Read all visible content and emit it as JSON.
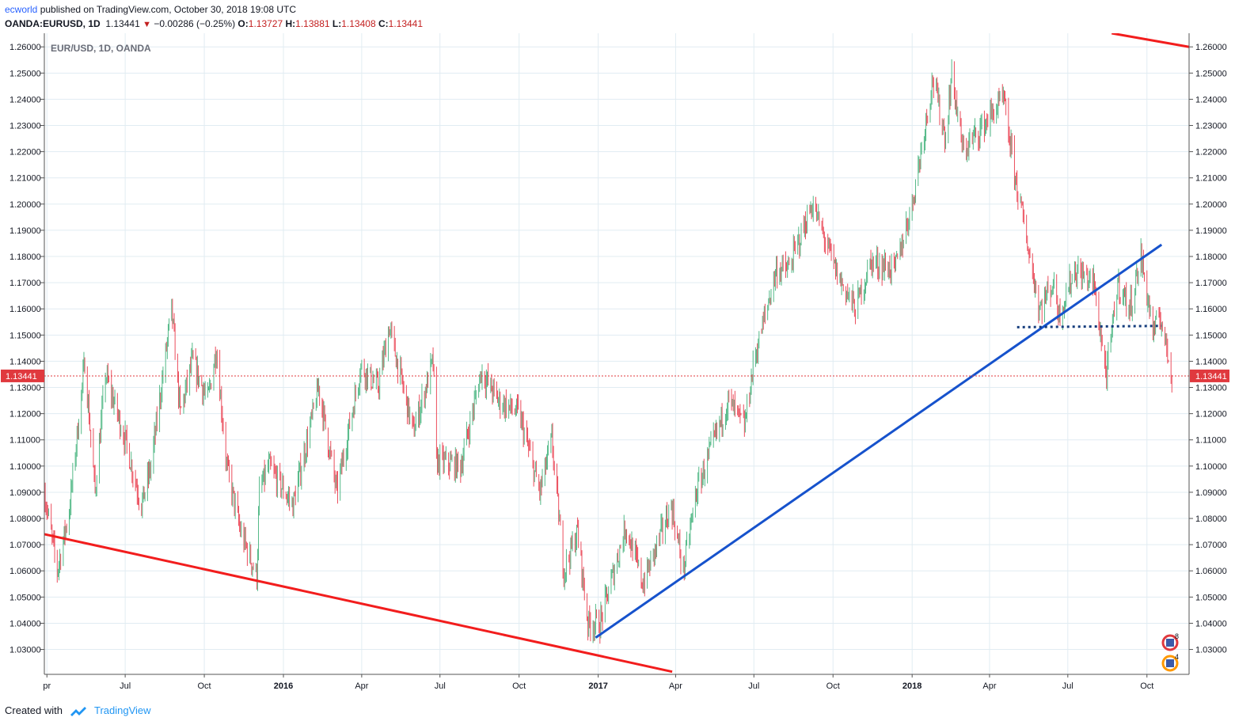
{
  "header": {
    "author": "ecworld",
    "published_text": " published on TradingView.com, October 30, 2018 19:08 UTC",
    "symbol": "OANDA:EURUSD, 1D",
    "last": "1.13441",
    "arrow": "▼",
    "change": "−0.00286 (−0.25%)",
    "o_label": "O:",
    "o_value": "1.13727",
    "h_label": "H:",
    "h_value": "1.13881",
    "l_label": "L:",
    "l_value": "1.13408",
    "c_label": "C:",
    "c_value": "1.13441"
  },
  "footer": {
    "created_with": "Created with",
    "brand": "TradingView"
  },
  "chart_data": {
    "type": "candlestick",
    "watermark": "EUR/USD, 1D, OANDA",
    "y_ticks": [
      "1.26000",
      "1.25000",
      "1.24000",
      "1.23000",
      "1.22000",
      "1.21000",
      "1.20000",
      "1.19000",
      "1.18000",
      "1.17000",
      "1.16000",
      "1.15000",
      "1.14000",
      "1.13000",
      "1.12000",
      "1.11000",
      "1.10000",
      "1.09000",
      "1.08000",
      "1.07000",
      "1.06000",
      "1.05000",
      "1.04000",
      "1.03000"
    ],
    "ylim": [
      1.0205,
      1.2652
    ],
    "x_ticks": [
      {
        "label": "pr",
        "date": "2015-04-01",
        "bold": false
      },
      {
        "label": "Jul",
        "date": "2015-07-01",
        "bold": false
      },
      {
        "label": "Oct",
        "date": "2015-10-01",
        "bold": false
      },
      {
        "label": "2016",
        "date": "2016-01-01",
        "bold": true
      },
      {
        "label": "Apr",
        "date": "2016-04-01",
        "bold": false
      },
      {
        "label": "Jul",
        "date": "2016-07-01",
        "bold": false
      },
      {
        "label": "Oct",
        "date": "2016-10-01",
        "bold": false
      },
      {
        "label": "2017",
        "date": "2017-01-01",
        "bold": true
      },
      {
        "label": "Apr",
        "date": "2017-04-01",
        "bold": false
      },
      {
        "label": "Jul",
        "date": "2017-07-01",
        "bold": false
      },
      {
        "label": "Oct",
        "date": "2017-10-01",
        "bold": false
      },
      {
        "label": "2018",
        "date": "2018-01-01",
        "bold": true
      },
      {
        "label": "Apr",
        "date": "2018-04-01",
        "bold": false
      },
      {
        "label": "Jul",
        "date": "2018-07-01",
        "bold": false
      },
      {
        "label": "Oct",
        "date": "2018-10-01",
        "bold": false
      }
    ],
    "x_range": [
      "2015-03-29",
      "2018-11-19"
    ],
    "price_path": [
      [
        "2015-03-29",
        1.09
      ],
      [
        "2015-04-13",
        1.06
      ],
      [
        "2015-04-27",
        1.083
      ],
      [
        "2015-05-15",
        1.14
      ],
      [
        "2015-05-27",
        1.09
      ],
      [
        "2015-06-08",
        1.135
      ],
      [
        "2015-06-22",
        1.12
      ],
      [
        "2015-07-01",
        1.11
      ],
      [
        "2015-07-20",
        1.085
      ],
      [
        "2015-07-31",
        1.1
      ],
      [
        "2015-08-24",
        1.16
      ],
      [
        "2015-09-03",
        1.12
      ],
      [
        "2015-09-17",
        1.14
      ],
      [
        "2015-10-05",
        1.125
      ],
      [
        "2015-10-15",
        1.145
      ],
      [
        "2015-10-27",
        1.1
      ],
      [
        "2015-11-12",
        1.075
      ],
      [
        "2015-12-01",
        1.058
      ],
      [
        "2015-12-04",
        1.09
      ],
      [
        "2015-12-15",
        1.1
      ],
      [
        "2016-01-12",
        1.085
      ],
      [
        "2016-02-11",
        1.13
      ],
      [
        "2016-03-03",
        1.09
      ],
      [
        "2016-03-31",
        1.138
      ],
      [
        "2016-04-20",
        1.13
      ],
      [
        "2016-05-03",
        1.153
      ],
      [
        "2016-05-31",
        1.113
      ],
      [
        "2016-06-23",
        1.14
      ],
      [
        "2016-06-27",
        1.102
      ],
      [
        "2016-07-25",
        1.1
      ],
      [
        "2016-08-18",
        1.136
      ],
      [
        "2016-09-07",
        1.125
      ],
      [
        "2016-10-01",
        1.12
      ],
      [
        "2016-10-25",
        1.09
      ],
      [
        "2016-11-08",
        1.11
      ],
      [
        "2016-11-22",
        1.06
      ],
      [
        "2016-12-08",
        1.075
      ],
      [
        "2016-12-20",
        1.04
      ],
      [
        "2017-01-03",
        1.04
      ],
      [
        "2017-02-02",
        1.077
      ],
      [
        "2017-02-22",
        1.055
      ],
      [
        "2017-03-27",
        1.085
      ],
      [
        "2017-04-10",
        1.06
      ],
      [
        "2017-04-25",
        1.09
      ],
      [
        "2017-05-16",
        1.11
      ],
      [
        "2017-06-01",
        1.125
      ],
      [
        "2017-06-20",
        1.115
      ],
      [
        "2017-07-01",
        1.14
      ],
      [
        "2017-07-27",
        1.175
      ],
      [
        "2017-08-10",
        1.175
      ],
      [
        "2017-09-07",
        1.2
      ],
      [
        "2017-10-06",
        1.173
      ],
      [
        "2017-10-27",
        1.16
      ],
      [
        "2017-11-14",
        1.178
      ],
      [
        "2017-12-12",
        1.175
      ],
      [
        "2018-01-01",
        1.2
      ],
      [
        "2018-01-25",
        1.248
      ],
      [
        "2018-02-09",
        1.225
      ],
      [
        "2018-02-16",
        1.25
      ],
      [
        "2018-03-01",
        1.22
      ],
      [
        "2018-04-17",
        1.24
      ],
      [
        "2018-05-01",
        1.21
      ],
      [
        "2018-05-29",
        1.16
      ],
      [
        "2018-06-14",
        1.17
      ],
      [
        "2018-06-21",
        1.158
      ],
      [
        "2018-07-09",
        1.175
      ],
      [
        "2018-07-31",
        1.17
      ],
      [
        "2018-08-15",
        1.134
      ],
      [
        "2018-08-28",
        1.17
      ],
      [
        "2018-09-11",
        1.16
      ],
      [
        "2018-09-24",
        1.18
      ],
      [
        "2018-10-09",
        1.15
      ],
      [
        "2018-10-16",
        1.158
      ],
      [
        "2018-10-30",
        1.13441
      ]
    ],
    "trendlines": [
      {
        "color": "#f21d1d",
        "style": "solid",
        "from": [
          "2015-03-29",
          1.074
        ],
        "to": [
          "2017-03-28",
          1.0215
        ]
      },
      {
        "color": "#1652cc",
        "style": "solid",
        "from": [
          "2016-12-29",
          1.0345
        ],
        "to": [
          "2018-10-18",
          1.1845
        ]
      },
      {
        "color": "#f21d1d",
        "style": "solid",
        "from": [
          "2018-08-21",
          1.2652
        ],
        "to": [
          "2018-11-19",
          1.26
        ]
      },
      {
        "color": "#143c7c",
        "style": "dotted",
        "from": [
          "2018-05-03",
          1.153
        ],
        "to": [
          "2018-10-18",
          1.1535
        ]
      }
    ],
    "last_price": {
      "value": 1.13441,
      "label": "1.13441",
      "color": "#e0393e"
    },
    "up_color": "#53b987",
    "down_color": "#eb4d5c",
    "grid": true,
    "events": [
      {
        "count": "8",
        "color": "#e0393e"
      },
      {
        "count": "4",
        "color": "#ff9800"
      }
    ]
  }
}
